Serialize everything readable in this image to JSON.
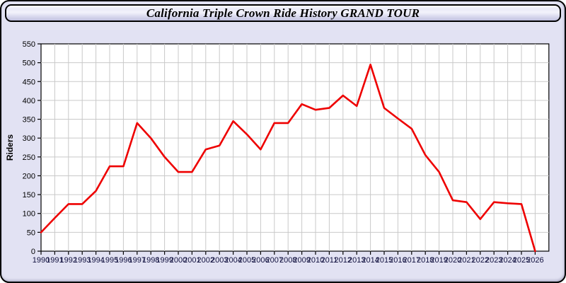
{
  "window": {
    "title": "California Triple Crown Ride History GRAND TOUR"
  },
  "colors": {
    "body_bg": "#e2e2f3",
    "plot_bg": "#ffffff",
    "grid": "#c9c9c9",
    "axis": "#000000",
    "line": "#ee0000",
    "y_label_color": "#000000",
    "x_label_color": "#10103e"
  },
  "chart_data": {
    "type": "line",
    "title": "California Triple Crown Ride History GRAND TOUR",
    "xlabel": "",
    "ylabel": "Riders",
    "ylim": [
      0,
      550
    ],
    "ytick_step": 50,
    "grid": true,
    "legend": false,
    "x": [
      1990,
      1991,
      1992,
      1993,
      1994,
      1995,
      1996,
      1997,
      1998,
      1999,
      2000,
      2001,
      2002,
      2003,
      2004,
      2005,
      2006,
      2007,
      2008,
      2009,
      2010,
      2011,
      2012,
      2013,
      2014,
      2015,
      2016,
      2017,
      2018,
      2019,
      2020,
      2021,
      2022,
      2023,
      2024,
      2025,
      2026
    ],
    "series": [
      {
        "name": "Riders",
        "values": [
          50,
          88,
          125,
          125,
          160,
          225,
          225,
          340,
          300,
          250,
          210,
          210,
          270,
          280,
          345,
          310,
          270,
          340,
          340,
          390,
          375,
          380,
          413,
          385,
          495,
          380,
          352,
          325,
          255,
          210,
          135,
          130,
          85,
          130,
          127,
          125,
          0
        ]
      }
    ]
  }
}
